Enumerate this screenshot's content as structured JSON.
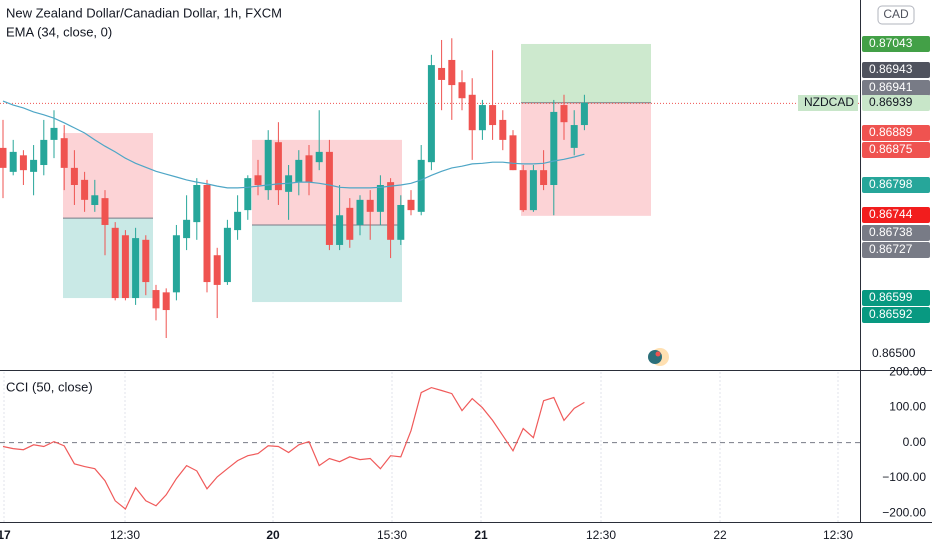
{
  "chart_data": [
    {
      "type": "candlestick",
      "title": "New Zealand Dollar/Canadian Dollar, 1h, FXCM",
      "symbol": "NZDCAD",
      "currency": "CAD",
      "up_color": "#26a69a",
      "down_color": "#ef5350",
      "open": [
        0.86861,
        0.86819,
        0.86848,
        0.86819,
        0.86831,
        0.86875,
        0.86878,
        0.86826,
        0.86805,
        0.86761,
        0.86773,
        0.86721,
        0.86708,
        0.86598,
        0.867,
        0.86612,
        0.86608,
        0.86608,
        0.86703,
        0.86731,
        0.86796,
        0.86673,
        0.86626,
        0.86717,
        0.86752,
        0.86813,
        0.86787,
        0.86871,
        0.86784,
        0.86801,
        0.86848,
        0.86836,
        0.86854,
        0.86691,
        0.86756,
        0.86726,
        0.8677,
        0.86749,
        0.86801,
        0.867,
        0.8677,
        0.86749,
        0.86836,
        0.87001,
        0.87015,
        0.86976,
        0.86954,
        0.86892,
        0.86936,
        0.8691,
        0.86883,
        0.86822,
        0.86752,
        0.86822,
        0.86796,
        0.86936,
        0.86861,
        0.86901
      ],
      "high": [
        0.8691,
        0.86875,
        0.86857,
        0.86866,
        0.8691,
        0.86927,
        0.86901,
        0.86857,
        0.86819,
        0.86805,
        0.86787,
        0.86731,
        0.86717,
        0.86721,
        0.86708,
        0.86621,
        0.86615,
        0.86726,
        0.86778,
        0.86808,
        0.86805,
        0.86686,
        0.86735,
        0.86778,
        0.86813,
        0.8684,
        0.86892,
        0.86906,
        0.86831,
        0.86857,
        0.86866,
        0.86927,
        0.86875,
        0.86796,
        0.86773,
        0.86778,
        0.86787,
        0.86813,
        0.86808,
        0.86778,
        0.86787,
        0.86866,
        0.87024,
        0.8705,
        0.87053,
        0.86997,
        0.86983,
        0.86945,
        0.87032,
        0.86927,
        0.86892,
        0.86831,
        0.86831,
        0.86857,
        0.86945,
        0.86954,
        0.86927,
        0.86954
      ],
      "low": [
        0.86773,
        0.86813,
        0.86796,
        0.86778,
        0.86813,
        0.86843,
        0.86787,
        0.86761,
        0.86749,
        0.86749,
        0.86673,
        0.86594,
        0.86594,
        0.86586,
        0.86603,
        0.86559,
        0.86528,
        0.86594,
        0.86682,
        0.867,
        0.86608,
        0.86563,
        0.86621,
        0.867,
        0.86735,
        0.86778,
        0.8677,
        0.86761,
        0.86735,
        0.86778,
        0.86778,
        0.86822,
        0.86682,
        0.86682,
        0.86686,
        0.86708,
        0.867,
        0.86726,
        0.86668,
        0.86691,
        0.86743,
        0.86743,
        0.86822,
        0.86927,
        0.8691,
        0.86927,
        0.8684,
        0.86875,
        0.86875,
        0.86857,
        0.86822,
        0.86749,
        0.86749,
        0.86787,
        0.86743,
        0.86875,
        0.86848,
        0.86892
      ],
      "close": [
        0.86826,
        0.86854,
        0.86822,
        0.8684,
        0.86875,
        0.86896,
        0.86826,
        0.86796,
        0.8677,
        0.86778,
        0.86726,
        0.86598,
        0.86598,
        0.86703,
        0.86626,
        0.8658,
        0.86577,
        0.86708,
        0.86735,
        0.86796,
        0.86626,
        0.86621,
        0.86721,
        0.86749,
        0.86808,
        0.86796,
        0.86875,
        0.86787,
        0.86813,
        0.8684,
        0.86801,
        0.86854,
        0.86691,
        0.86743,
        0.867,
        0.8677,
        0.86749,
        0.86796,
        0.867,
        0.86761,
        0.86752,
        0.8684,
        0.87006,
        0.8698,
        0.86971,
        0.86948,
        0.86892,
        0.86936,
        0.86901,
        0.86875,
        0.86822,
        0.86752,
        0.86822,
        0.86796,
        0.86924,
        0.86906,
        0.86901,
        0.8694
      ],
      "series": [
        {
          "name": "EMA (34, close, 0)",
          "color": "#4ea6c6",
          "values": [
            0.86943,
            0.86936,
            0.86931,
            0.86924,
            0.86919,
            0.86913,
            0.86905,
            0.86896,
            0.86887,
            0.86875,
            0.86864,
            0.86854,
            0.86843,
            0.86834,
            0.86827,
            0.8682,
            0.86815,
            0.8681,
            0.86805,
            0.86801,
            0.86798,
            0.86794,
            0.86791,
            0.86791,
            0.86792,
            0.86794,
            0.86796,
            0.86798,
            0.86799,
            0.86801,
            0.86801,
            0.86799,
            0.86796,
            0.86792,
            0.86791,
            0.86791,
            0.86791,
            0.86792,
            0.86794,
            0.86796,
            0.86799,
            0.86805,
            0.86813,
            0.8682,
            0.86826,
            0.86829,
            0.86833,
            0.86834,
            0.86836,
            0.86836,
            0.86834,
            0.86833,
            0.86833,
            0.86834,
            0.86838,
            0.86841,
            0.86845,
            0.8685
          ]
        }
      ],
      "positions": [
        {
          "stop": 0.86887,
          "entry": 0.86738,
          "target": 0.86598
        },
        {
          "stop": 0.86875,
          "entry": 0.86726,
          "target": 0.86591
        },
        {
          "stop": 0.86742,
          "entry": 0.8694,
          "target": 0.87043
        }
      ],
      "price_labels": [
        {
          "value": 0.87043,
          "color": "#43a047"
        },
        {
          "value": 0.86943,
          "color": "#50535e"
        },
        {
          "value": 0.86941,
          "color": "#787b86"
        },
        {
          "value": 0.86939,
          "color": "#c8e6c9",
          "text_color": "#131722"
        },
        {
          "value": 0.86889,
          "color": "#ef5350"
        },
        {
          "value": 0.86875,
          "color": "#ef5350"
        },
        {
          "value": 0.86798,
          "color": "#26a69a"
        },
        {
          "value": 0.86744,
          "color": "#f21d1d"
        },
        {
          "value": 0.86738,
          "color": "#787b86"
        },
        {
          "value": 0.86727,
          "color": "#787b86"
        },
        {
          "value": 0.86599,
          "color": "#089981"
        },
        {
          "value": 0.86592,
          "color": "#089981"
        }
      ],
      "ylim": [
        0.86472,
        0.8712
      ],
      "yticks": [
        {
          "value": 0.865,
          "label": "0.86500"
        }
      ]
    },
    {
      "type": "line",
      "title": "CCI (50, close)",
      "color": "#f05a5a",
      "values": [
        -11,
        -17,
        -20,
        -6,
        -11,
        3,
        -9,
        -60,
        -68,
        -74,
        -108,
        -165,
        -188,
        -128,
        -165,
        -179,
        -148,
        -102,
        -65,
        -80,
        -131,
        -97,
        -74,
        -51,
        -37,
        -31,
        -9,
        -11,
        -28,
        -6,
        3,
        -65,
        -45,
        -54,
        -40,
        -48,
        -45,
        -74,
        -37,
        -40,
        34,
        142,
        156,
        148,
        139,
        91,
        125,
        99,
        63,
        20,
        -23,
        40,
        14,
        119,
        128,
        63,
        97,
        114
      ],
      "ylim": [
        -225,
        206
      ],
      "yticks": [
        {
          "value": 200,
          "label": "200.00"
        },
        {
          "value": 100,
          "label": "100.00"
        },
        {
          "value": 0,
          "label": "0.00"
        },
        {
          "value": -100,
          "label": "−100.00"
        },
        {
          "value": -200,
          "label": "−200.00"
        }
      ],
      "x_labels": [
        "17",
        "12:30",
        "20",
        "15:30",
        "21",
        "12:30",
        "22",
        "12:30"
      ]
    }
  ]
}
